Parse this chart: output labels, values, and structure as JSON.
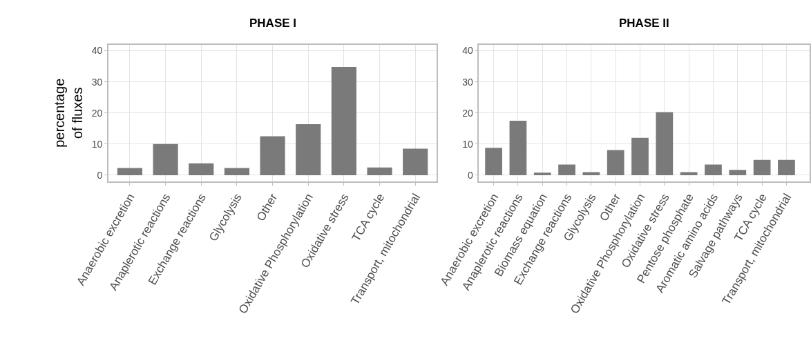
{
  "chart_data": [
    {
      "type": "bar",
      "title": "PHASE I",
      "ylabel": "percentage\nof fluxes",
      "categories": [
        "Anaerobic excretion",
        "Anaplerotic reactions",
        "Exchange reactions",
        "Glycolysis",
        "Other",
        "Oxidative Phosphorylation",
        "Oxidative stress",
        "TCA cycle",
        "Transport, mitochondrial"
      ],
      "values": [
        2.3,
        10.0,
        3.8,
        2.3,
        12.5,
        16.4,
        34.8,
        2.5,
        8.5
      ],
      "color": "#7a7a7a",
      "ylim": [
        -2,
        42
      ],
      "yticks": [
        0,
        10,
        20,
        30,
        40
      ],
      "grid": true
    },
    {
      "type": "bar",
      "title": "PHASE II",
      "categories": [
        "Anaerobic excretion",
        "Anaplerotic reactions",
        "Biomass equation",
        "Exchange reactions",
        "Glycolysis",
        "Other",
        "Oxidative Phosphorylation",
        "Oxidative stress",
        "Pentose phosphate",
        "Aromatic amino acids",
        "Salvage pathways",
        "TCA cycle",
        "Transport, mitochondrial"
      ],
      "values": [
        8.8,
        17.5,
        0.8,
        3.4,
        1.0,
        8.1,
        12.0,
        20.3,
        1.0,
        3.4,
        1.7,
        4.9,
        4.9
      ],
      "color": "#7a7a7a",
      "ylim": [
        -2,
        42
      ],
      "yticks": [
        0,
        10,
        20,
        30,
        40
      ],
      "grid": true
    }
  ]
}
